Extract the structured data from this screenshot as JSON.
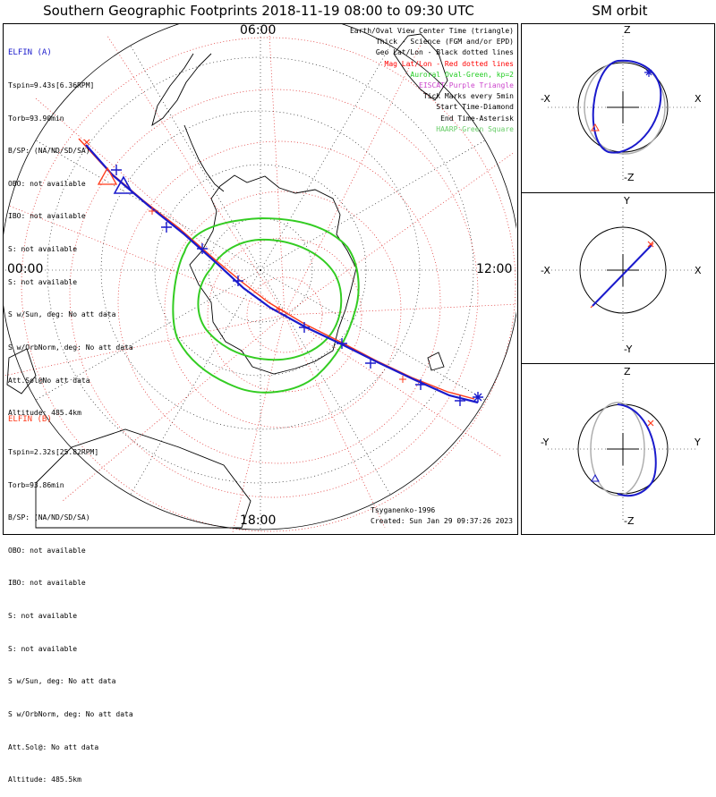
{
  "header": {
    "title": "Southern Geographic Footprints 2018-11-19 08:00 to 09:30 UTC",
    "orbit_title": "SM orbit"
  },
  "map_labels": {
    "top": "06:00",
    "left": "00:00",
    "right": "12:00",
    "bottom": "18:00"
  },
  "elfin_a": {
    "name": "ELFIN (A)",
    "color": "#1a1acc",
    "lines": [
      "Tspin=9.43s[6.36RPM]",
      "Torb=93.90min",
      "B/SP: (NA/ND/SD/SA)",
      "OBO: not available",
      "IBO: not available",
      "S: not available",
      "S: not available",
      "S w/Sun, deg: No att data",
      "S w/OrbNorm, deg: No att data",
      "Att.Sol@No att data",
      "Altitude: 485.4km"
    ]
  },
  "elfin_b": {
    "name": "ELFIN (B)",
    "color": "#ff3a1a",
    "lines": [
      "Tspin=2.32s[25.82RPM]",
      "Torb=93.86min",
      "B/SP: (NA/ND/SD/SA)",
      "OBO: not available",
      "IBO: not available",
      "S: not available",
      "S: not available",
      "S w/Sun, deg: No att data",
      "S w/OrbNorm, deg: No att data",
      "Att.Sol@: No att data",
      "Altitude: 485.5km"
    ]
  },
  "legend": [
    {
      "text": "Earth/Oval View Center Time (triangle)",
      "color": "#000000"
    },
    {
      "text": "Thick - Science (FGM and/or EPD)",
      "color": "#000000"
    },
    {
      "text": "Geo Lat/Lon - Black dotted lines",
      "color": "#000000"
    },
    {
      "text": "Mag Lat/Lon - Red dotted lines",
      "color": "#ff0000"
    },
    {
      "text": "Auroral Oval-Green, kp=2",
      "color": "#22cc22"
    },
    {
      "text": "EISCAT-Purple Triangle",
      "color": "#cc44cc"
    },
    {
      "text": "Tick Marks every 5min",
      "color": "#000000"
    },
    {
      "text": "Start Time-Diamond",
      "color": "#000000"
    },
    {
      "text": "End Time-Asterisk",
      "color": "#000000"
    },
    {
      "text": "HAARP-Green Square",
      "color": "#66cc66"
    }
  ],
  "footer": {
    "model": "Tsyganenko-1996",
    "created": "Created: Sun Jan 29 09:37:26 2023"
  },
  "orbit_panels": [
    {
      "top": "Z",
      "bottom": "-Z",
      "left": "-X",
      "right": "X"
    },
    {
      "top": "Y",
      "bottom": "-Y",
      "left": "-X",
      "right": "X"
    },
    {
      "top": "Z",
      "bottom": "-Z",
      "left": "-Y",
      "right": "Y"
    }
  ],
  "colors": {
    "blue_track": "#1a1acc",
    "red_track": "#ff3a1a",
    "oval": "#33cc22",
    "mag_grid": "#dd2222"
  }
}
